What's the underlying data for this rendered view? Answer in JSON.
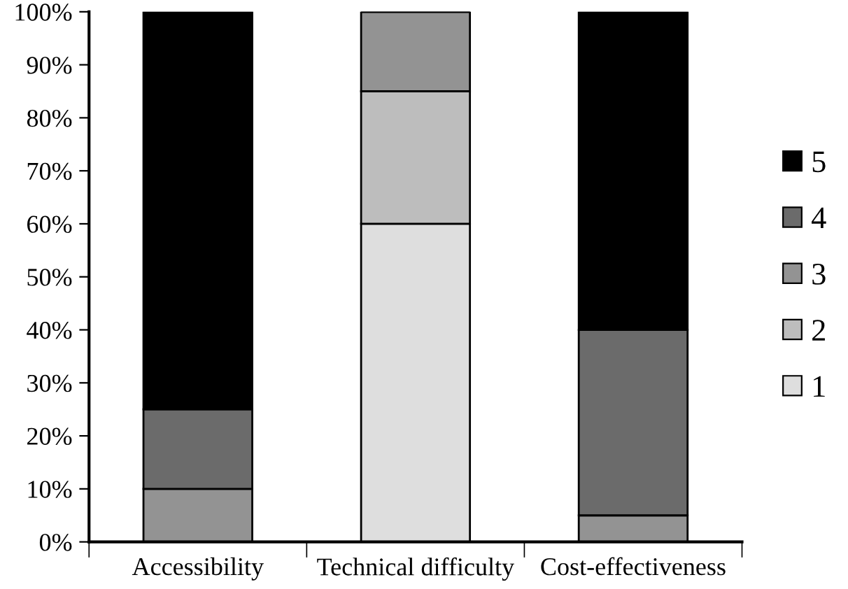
{
  "chart_data": {
    "type": "bar",
    "stacked": true,
    "categories": [
      "Accessibility",
      "Technical difficulty",
      "Cost-effectiveness"
    ],
    "series": [
      {
        "name": "1",
        "color": "#dedede",
        "values": [
          0,
          60,
          0
        ]
      },
      {
        "name": "2",
        "color": "#bdbdbd",
        "values": [
          0,
          25,
          0
        ]
      },
      {
        "name": "3",
        "color": "#939393",
        "values": [
          10,
          15,
          5
        ]
      },
      {
        "name": "4",
        "color": "#6b6b6b",
        "values": [
          15,
          0,
          35
        ]
      },
      {
        "name": "5",
        "color": "#000000",
        "values": [
          75,
          0,
          60
        ]
      }
    ],
    "ylim": [
      0,
      100
    ],
    "yticks": [
      {
        "value": 0,
        "label": "0%"
      },
      {
        "value": 10,
        "label": "10%"
      },
      {
        "value": 20,
        "label": "20%"
      },
      {
        "value": 30,
        "label": "30%"
      },
      {
        "value": 40,
        "label": "40%"
      },
      {
        "value": 50,
        "label": "50%"
      },
      {
        "value": 60,
        "label": "60%"
      },
      {
        "value": 70,
        "label": "70%"
      },
      {
        "value": 80,
        "label": "80%"
      },
      {
        "value": 90,
        "label": "90%"
      },
      {
        "value": 100,
        "label": "100%"
      }
    ],
    "grid": false,
    "legend": "right"
  }
}
